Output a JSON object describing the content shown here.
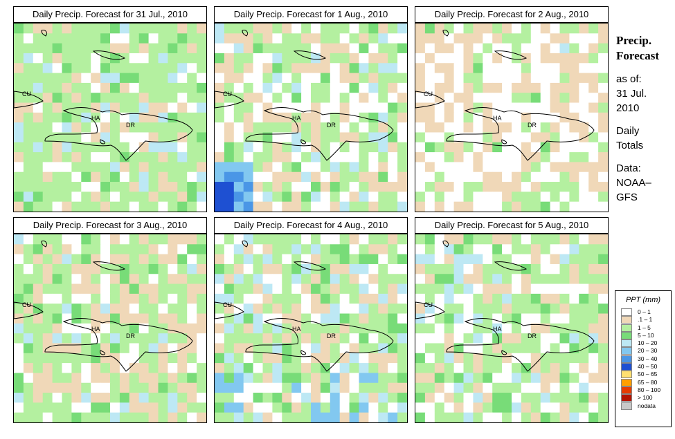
{
  "panels": [
    {
      "title": "Daily Precip. Forecast for  31 Jul., 2010",
      "seed": 11
    },
    {
      "title": "Daily Precip. Forecast for  1 Aug., 2010",
      "seed": 23
    },
    {
      "title": "Daily Precip. Forecast for  2 Aug., 2010",
      "seed": 37
    },
    {
      "title": "Daily Precip. Forecast for  3 Aug., 2010",
      "seed": 41
    },
    {
      "title": "Daily Precip. Forecast for  4 Aug., 2010",
      "seed": 53
    },
    {
      "title": "Daily Precip. Forecast for  5 Aug., 2010",
      "seed": 67
    }
  ],
  "map_labels": {
    "cuba": "CU",
    "haiti": "HA",
    "dominican_republic": "DR"
  },
  "sidebar": {
    "title_line1": "Precip.",
    "title_line2": "Forecast",
    "asof_label": "as of:",
    "date_line1": "31 Jul.",
    "date_line2": "2010",
    "totals_line1": "Daily",
    "totals_line2": "Totals",
    "data_label": "Data:",
    "data_line1": "NOAA–",
    "data_line2": "GFS"
  },
  "legend": {
    "title": "PPT (mm)",
    "items": [
      {
        "label": "0 – 1",
        "color": "#ffffff"
      },
      {
        "label": ".1 – 1",
        "color": "#f0d8b8"
      },
      {
        "label": "1 – 5",
        "color": "#b4f0a0"
      },
      {
        "label": "5 – 10",
        "color": "#78dc78"
      },
      {
        "label": "10 – 20",
        "color": "#bde8f4"
      },
      {
        "label": "20 – 30",
        "color": "#82c8f0"
      },
      {
        "label": "30 – 40",
        "color": "#4a96e6"
      },
      {
        "label": "40 – 50",
        "color": "#1e50d2"
      },
      {
        "label": "50 – 65",
        "color": "#ffe070"
      },
      {
        "label": "65 – 80",
        "color": "#ffa000"
      },
      {
        "label": "80 – 100",
        "color": "#e63c00"
      },
      {
        "label": "> 100",
        "color": "#b41400"
      },
      {
        "label": "nodata",
        "color": "#c8c8c8"
      }
    ]
  }
}
